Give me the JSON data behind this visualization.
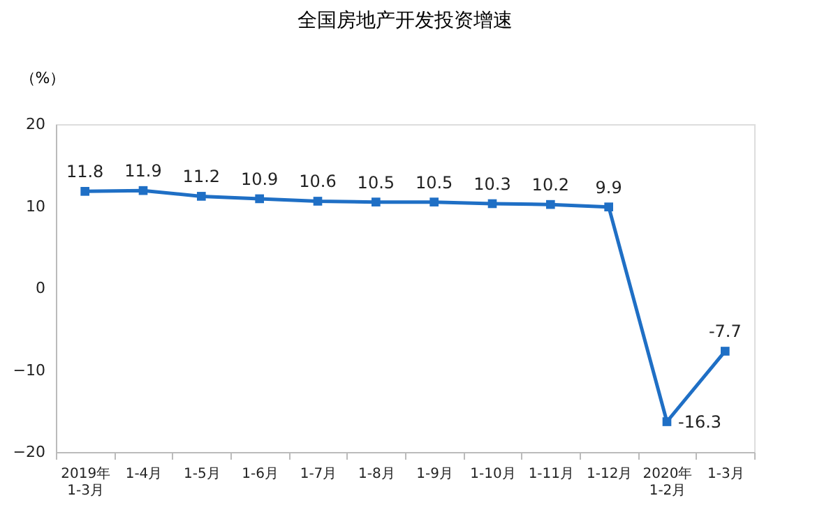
{
  "chart_data": {
    "type": "line",
    "title": "全国房地产开发投资增速",
    "ylabel": "（%）",
    "categories": [
      "2019年\n1-3月",
      "1-4月",
      "1-5月",
      "1-6月",
      "1-7月",
      "1-8月",
      "1-9月",
      "1-10月",
      "1-11月",
      "1-12月",
      "2020年\n1-2月",
      "1-3月"
    ],
    "series": [
      {
        "color": "#1f6fc5",
        "values": [
          11.8,
          11.9,
          11.2,
          10.9,
          10.6,
          10.5,
          10.5,
          10.3,
          10.2,
          9.9,
          -16.3,
          -7.7
        ]
      }
    ],
    "ylim": [
      -20,
      20
    ],
    "yticks": [
      -20,
      -10,
      0,
      10,
      20
    ],
    "grid": false,
    "legend": false,
    "marker": "square",
    "line_style": "solid",
    "data_labels": true
  }
}
